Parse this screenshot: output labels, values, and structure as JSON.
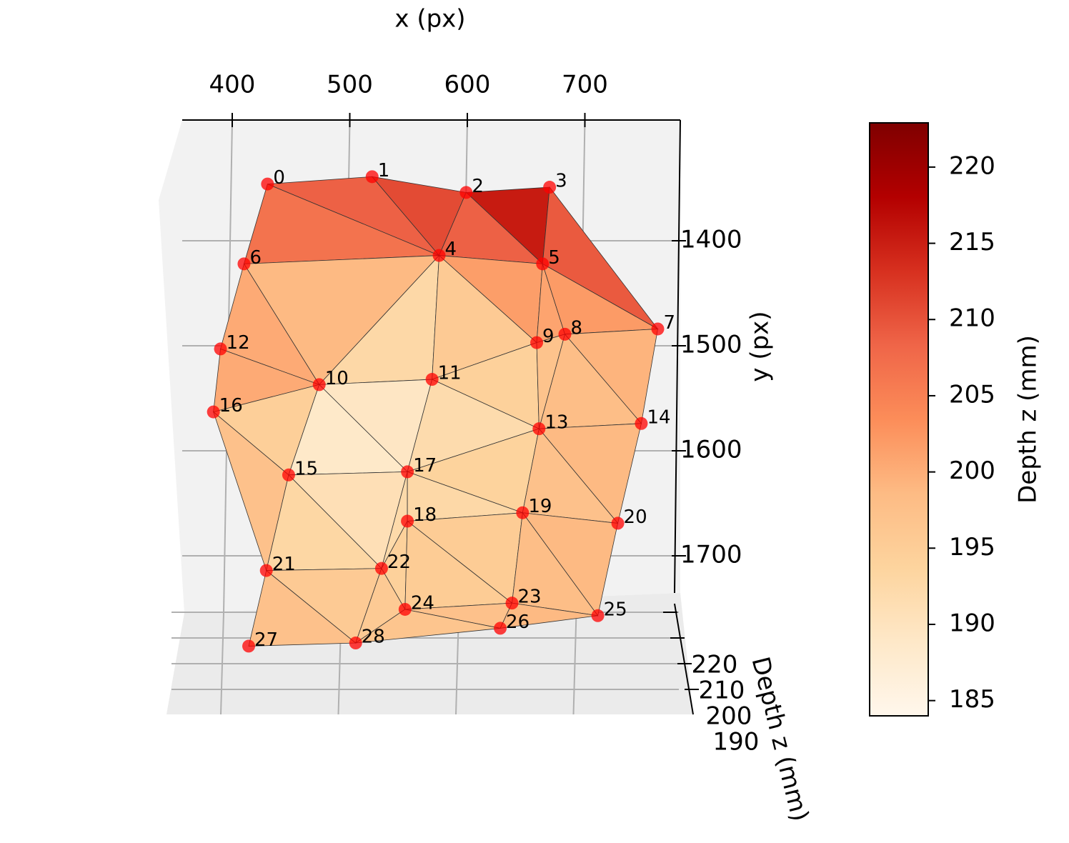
{
  "chart_data": {
    "type": "scatter3d",
    "xlabel": "x (px)",
    "ylabel": "y (px)",
    "zlabel": "Depth z (mm)",
    "xticks": [
      400,
      500,
      600,
      700
    ],
    "yticks": [
      1400,
      1500,
      1600,
      1700
    ],
    "zticks": [
      190,
      200,
      210,
      220
    ],
    "labels": [
      "0",
      "1",
      "2",
      "3",
      "4",
      "5",
      "6",
      "7",
      "8",
      "9",
      "10",
      "11",
      "12",
      "13",
      "14",
      "15",
      "16",
      "17",
      "18",
      "19",
      "20",
      "21",
      "22",
      "23",
      "24",
      "25",
      "26",
      "27",
      "28"
    ],
    "x": [
      430,
      519,
      599,
      670,
      576,
      664,
      410,
      762,
      683,
      659,
      474,
      570,
      390,
      661,
      748,
      448,
      384,
      549,
      549,
      647,
      728,
      429,
      527,
      638,
      547,
      711,
      628,
      414,
      505
    ],
    "y": [
      1346,
      1339,
      1354,
      1349,
      1414,
      1422,
      1422,
      1484,
      1489,
      1497,
      1537,
      1532,
      1503,
      1579,
      1574,
      1623,
      1563,
      1620,
      1667,
      1659,
      1669,
      1714,
      1712,
      1745,
      1751,
      1757,
      1769,
      1786,
      1783
    ],
    "z": [
      212,
      214,
      218,
      220,
      200,
      208,
      208,
      200,
      198,
      197,
      188,
      190,
      205,
      196,
      200,
      188,
      208,
      190,
      192,
      196,
      200,
      196,
      195,
      198,
      196,
      200,
      198,
      200,
      196
    ],
    "color": "#ff0000",
    "colorbar": {
      "label": "Depth z (mm)",
      "lim": [
        184,
        222.9
      ],
      "ticks": [
        185,
        190,
        195,
        200,
        205,
        210,
        215,
        220
      ],
      "colors": [
        "#fff7ec",
        "#fee8c8",
        "#fdd49e",
        "#fdbb84",
        "#fc8d59",
        "#ef6548",
        "#d7301f",
        "#b30000",
        "#7f0000"
      ]
    }
  }
}
